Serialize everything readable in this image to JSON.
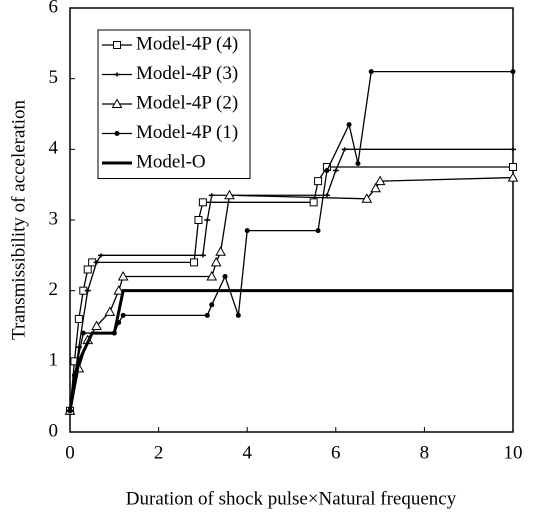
{
  "chart_data": {
    "type": "line",
    "xlabel": "Duration of shock pulse×Natural frequency",
    "ylabel": "Transmissibility of acceleration",
    "xlim": [
      0,
      10
    ],
    "ylim": [
      0,
      6
    ],
    "xticks": [
      0,
      2,
      4,
      6,
      8,
      10
    ],
    "yticks": [
      0,
      1,
      2,
      3,
      4,
      5,
      6
    ],
    "legend": "upper left",
    "series": [
      {
        "name": "Model-4P (4)",
        "color": "#000000",
        "marker": "square",
        "x": [
          0,
          0.1,
          0.2,
          0.3,
          0.4,
          0.5,
          2.8,
          2.9,
          3.0,
          5.5,
          5.6,
          5.8,
          10
        ],
        "values": [
          0.3,
          1.0,
          1.6,
          2.0,
          2.3,
          2.4,
          2.4,
          3.0,
          3.25,
          3.25,
          3.55,
          3.75,
          3.75
        ]
      },
      {
        "name": "Model-4P (3)",
        "color": "#000000",
        "marker": "plus",
        "x": [
          0,
          0.2,
          0.4,
          0.6,
          0.7,
          3.0,
          3.1,
          3.2,
          5.8,
          6.0,
          6.2,
          10
        ],
        "values": [
          0.3,
          1.2,
          2.0,
          2.4,
          2.5,
          2.5,
          3.0,
          3.35,
          3.35,
          3.7,
          4.0,
          4.0
        ]
      },
      {
        "name": "Model-4P (2)",
        "color": "#000000",
        "marker": "triangle",
        "x": [
          0,
          0.2,
          0.4,
          0.6,
          0.9,
          1.1,
          1.2,
          3.2,
          3.3,
          3.4,
          3.6,
          6.7,
          6.9,
          7.0,
          10
        ],
        "values": [
          0.3,
          0.9,
          1.3,
          1.5,
          1.7,
          2.0,
          2.2,
          2.2,
          2.4,
          2.55,
          3.35,
          3.3,
          3.45,
          3.55,
          3.6
        ]
      },
      {
        "name": "Model-4P (1)",
        "color": "#000000",
        "marker": "circle",
        "x": [
          0,
          0.1,
          0.3,
          1.0,
          1.1,
          1.2,
          3.1,
          3.2,
          3.5,
          3.8,
          4.0,
          5.6,
          5.8,
          6.3,
          6.5,
          6.8,
          10
        ],
        "values": [
          0.3,
          0.8,
          1.4,
          1.4,
          1.55,
          1.65,
          1.65,
          1.8,
          2.2,
          1.65,
          2.85,
          2.85,
          3.7,
          4.35,
          3.8,
          5.1,
          5.1
        ]
      },
      {
        "name": "Model-O",
        "color": "#000000",
        "marker": "none",
        "x": [
          0,
          0.2,
          0.5,
          1.0,
          1.2,
          10
        ],
        "values": [
          0.3,
          1.0,
          1.4,
          1.4,
          2.0,
          2.0
        ]
      }
    ]
  }
}
